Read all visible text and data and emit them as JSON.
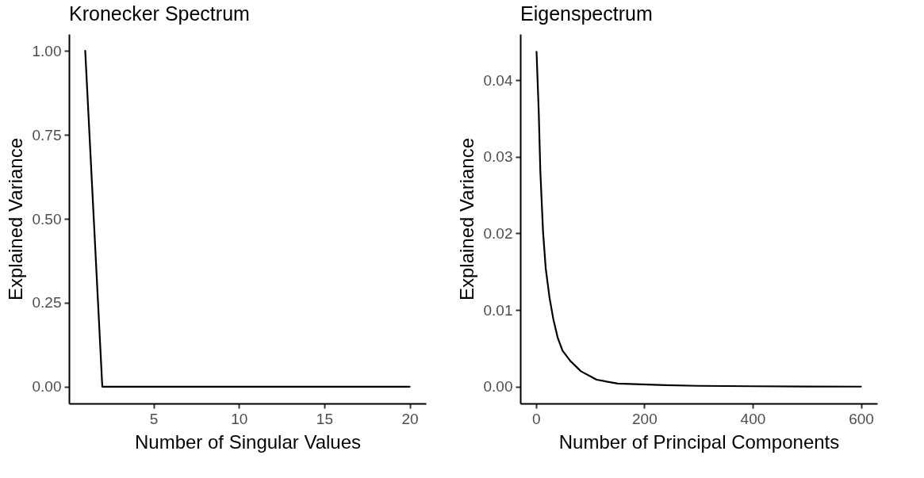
{
  "chart_data": [
    {
      "type": "line",
      "title": "Kronecker Spectrum",
      "xlabel": "Number of Singular Values",
      "ylabel": "Explained Variance",
      "color": "#000000",
      "x": [
        1,
        2,
        3,
        4,
        5,
        6,
        7,
        8,
        9,
        10,
        11,
        12,
        13,
        14,
        15,
        16,
        17,
        18,
        19,
        20
      ],
      "values": [
        1,
        0,
        0,
        0,
        0,
        0,
        0,
        0,
        0,
        0,
        0,
        0,
        0,
        0,
        0,
        0,
        0,
        0,
        0,
        0
      ],
      "xlim": [
        0.05,
        20.95
      ],
      "ylim": [
        -0.05,
        1.05
      ],
      "xticks": [
        5,
        10,
        15,
        20
      ],
      "yticks": [
        {
          "value": 0,
          "label": "0.00"
        },
        {
          "value": 0.25,
          "label": "0.25"
        },
        {
          "value": 0.5,
          "label": "0.50"
        },
        {
          "value": 0.75,
          "label": "0.75"
        },
        {
          "value": 1,
          "label": "1.00"
        }
      ]
    },
    {
      "type": "line",
      "title": "Eigenspectrum",
      "xlabel": "Number of Principal Components",
      "ylabel": "Explained Variance",
      "color": "#000000",
      "x": [
        1,
        5,
        8,
        13,
        18,
        25,
        32,
        40,
        49,
        64,
        83,
        112,
        151,
        239,
        300,
        400,
        500,
        600
      ],
      "values": [
        0.0437,
        0.036,
        0.0281,
        0.0202,
        0.0154,
        0.0116,
        0.0088,
        0.0064,
        0.0047,
        0.0033,
        0.002,
        0.0009,
        0.0004,
        0.0002,
        0.0001,
        5e-05,
        2e-05,
        0
      ],
      "xlim": [
        -29,
        630
      ],
      "ylim": [
        -0.0022,
        0.046
      ],
      "xticks": [
        0,
        200,
        400,
        600
      ],
      "yticks": [
        {
          "value": 0,
          "label": "0.00"
        },
        {
          "value": 0.01,
          "label": "0.01"
        },
        {
          "value": 0.02,
          "label": "0.02"
        },
        {
          "value": 0.03,
          "label": "0.03"
        },
        {
          "value": 0.04,
          "label": "0.04"
        }
      ]
    }
  ]
}
